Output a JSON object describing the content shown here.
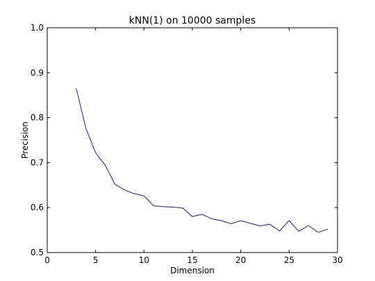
{
  "chart_data": {
    "type": "line",
    "title": "kNN(1) on 10000 samples",
    "xlabel": "Dimension",
    "ylabel": "Precision",
    "xlim": [
      0,
      30
    ],
    "ylim": [
      0.5,
      1.0
    ],
    "xticks": [
      0,
      5,
      10,
      15,
      20,
      25,
      30
    ],
    "yticks": [
      0.5,
      0.6,
      0.7,
      0.8,
      0.9,
      1.0
    ],
    "xtick_labels": [
      "0",
      "5",
      "10",
      "15",
      "20",
      "25",
      "30"
    ],
    "ytick_labels": [
      "0.5",
      "0.6",
      "0.7",
      "0.8",
      "0.9",
      "1.0"
    ],
    "grid": false,
    "line_color": "#1a1a8c",
    "series": [
      {
        "x": [
          3,
          4,
          5,
          6,
          7,
          8,
          9,
          10,
          11,
          12,
          13,
          14,
          15,
          16,
          17,
          18,
          19,
          20,
          21,
          22,
          23,
          24,
          25,
          26,
          27,
          28,
          29
        ],
        "values": [
          0.865,
          0.776,
          0.722,
          0.694,
          0.652,
          0.639,
          0.631,
          0.626,
          0.604,
          0.602,
          0.601,
          0.599,
          0.58,
          0.585,
          0.575,
          0.571,
          0.564,
          0.571,
          0.565,
          0.559,
          0.563,
          0.548,
          0.571,
          0.547,
          0.56,
          0.545,
          0.552
        ]
      }
    ]
  }
}
